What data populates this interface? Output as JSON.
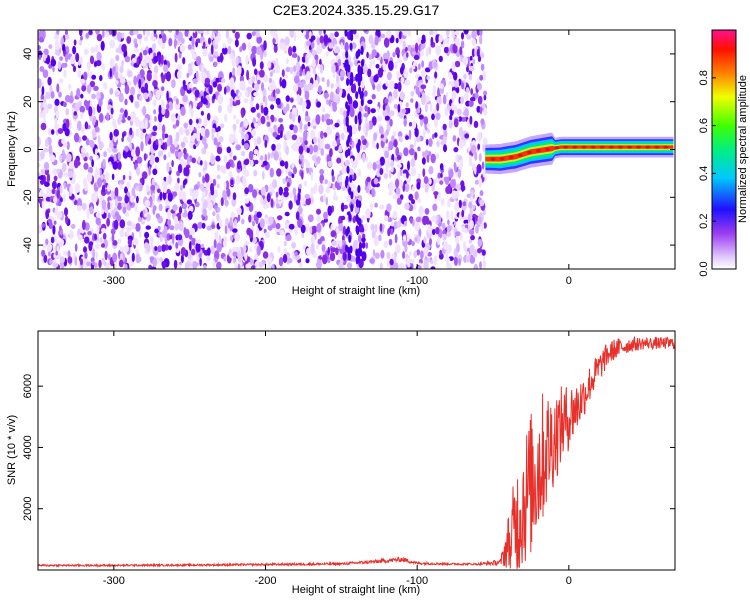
{
  "title": "C2E3.2024.335.15.29.G17",
  "chart_data": [
    {
      "type": "heatmap",
      "xlabel": "Height of straight line (km)",
      "ylabel": "Frequency (Hz)",
      "xlim": [
        -350,
        70
      ],
      "ylim": [
        -50,
        50
      ],
      "xticks": [
        -300,
        -200,
        -100,
        0
      ],
      "xtick_labels": [
        "-300",
        "-200",
        "-100",
        "0"
      ],
      "yticks": [
        -40,
        -20,
        0,
        20,
        40
      ],
      "ytick_labels": [
        "-40",
        "-20",
        "0",
        "20",
        "40"
      ],
      "noise_region_x": [
        -350,
        -55
      ],
      "signal_band": {
        "x": [
          -55,
          -45,
          -35,
          -25,
          -15,
          -5,
          5,
          15,
          30,
          50,
          70
        ],
        "center_freq": [
          -4,
          -4,
          -3,
          -1,
          0,
          1,
          1,
          1,
          1,
          1,
          1
        ],
        "peak_amplitude": [
          0.6,
          0.75,
          0.8,
          0.85,
          0.9,
          0.95,
          0.95,
          0.95,
          0.95,
          0.95,
          0.95
        ]
      },
      "colorbar": {
        "label": "Normalized spectral amplitude",
        "range": [
          0,
          1
        ],
        "ticks": [
          0.0,
          0.2,
          0.4,
          0.6,
          0.8
        ],
        "tick_labels": [
          "0.0",
          "0.2",
          "0.4",
          "0.6",
          "0.8"
        ]
      }
    },
    {
      "type": "line",
      "xlabel": "Height of straight line (km)",
      "ylabel": "SNR (10 * v/v)",
      "xlim": [
        -350,
        70
      ],
      "ylim": [
        0,
        7800
      ],
      "xticks": [
        -300,
        -200,
        -100,
        0
      ],
      "xtick_labels": [
        "-300",
        "-200",
        "-100",
        "0"
      ],
      "yticks": [
        2000,
        4000,
        6000
      ],
      "ytick_labels": [
        "2000",
        "4000",
        "6000"
      ],
      "color": "#e8302a",
      "series": [
        {
          "x": [
            -350,
            -300,
            -250,
            -200,
            -150,
            -125,
            -110,
            -100,
            -80,
            -60,
            -45,
            -40,
            -35,
            -30,
            -25,
            -20,
            -15,
            -10,
            -5,
            0,
            5,
            10,
            15,
            20,
            25,
            30,
            40,
            50,
            60,
            70
          ],
          "y": [
            150,
            150,
            160,
            180,
            200,
            280,
            350,
            220,
            200,
            190,
            250,
            900,
            1500,
            2200,
            2800,
            3400,
            3900,
            4300,
            4700,
            5000,
            5300,
            5700,
            6200,
            6600,
            7000,
            7200,
            7350,
            7400,
            7400,
            7400
          ],
          "noise_amplitude": [
            30,
            30,
            30,
            35,
            40,
            60,
            80,
            40,
            35,
            30,
            100,
            900,
            1800,
            2200,
            2400,
            2400,
            2000,
            1600,
            1300,
            1100,
            900,
            700,
            600,
            500,
            400,
            350,
            250,
            200,
            200,
            200
          ]
        }
      ]
    }
  ]
}
